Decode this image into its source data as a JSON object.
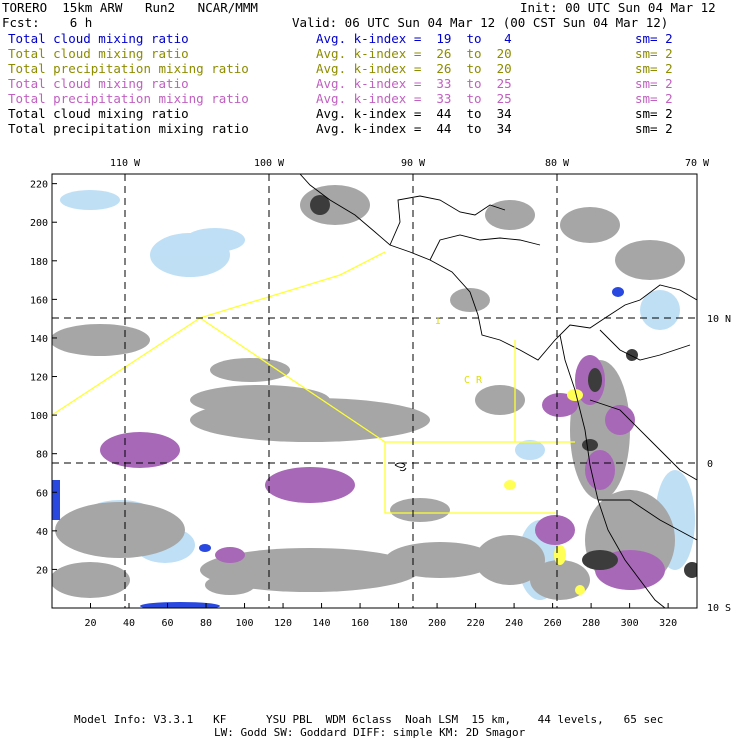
{
  "header": {
    "left1": "TORERO  15km ARW   Run2   NCAR/MMM",
    "right1": "Init: 00 UTC Sun 04 Mar 12",
    "left2": "Fcst:    6 h",
    "right2": "Valid: 06 UTC Sun 04 Mar 12 (00 CST Sun 04 Mar 12)"
  },
  "legend": [
    {
      "field": "Total cloud mixing ratio",
      "idx": "Avg. k-index =  19  to   4",
      "sm": "sm= 2",
      "color": "#0000cc"
    },
    {
      "field": "Total cloud mixing ratio",
      "idx": "Avg. k-index =  26  to  20",
      "sm": "sm= 2",
      "color": "#8c8c00"
    },
    {
      "field": "Total precipitation mixing ratio",
      "idx": "Avg. k-index =  26  to  20",
      "sm": "sm= 2",
      "color": "#8c8c00"
    },
    {
      "field": "Total cloud mixing ratio",
      "idx": "Avg. k-index =  33  to  25",
      "sm": "sm= 2",
      "color": "#c060c0"
    },
    {
      "field": "Total precipitation mixing ratio",
      "idx": "Avg. k-index =  33  to  25",
      "sm": "sm= 2",
      "color": "#c060c0"
    },
    {
      "field": "Total cloud mixing ratio",
      "idx": "Avg. k-index =  44  to  34",
      "sm": "sm= 2",
      "color": "#000000"
    },
    {
      "field": "Total precipitation mixing ratio",
      "idx": "Avg. k-index =  44  to  34",
      "sm": "sm= 2",
      "color": "#000000"
    }
  ],
  "axes": {
    "lon_labels": [
      "110 W",
      "100 W",
      "90 W",
      "80 W",
      "70 W"
    ],
    "lat_labels": [
      "10 N",
      "0",
      "10 S"
    ],
    "x_ticks": [
      "20",
      "40",
      "60",
      "80",
      "100",
      "120",
      "140",
      "160",
      "180",
      "200",
      "220",
      "240",
      "260",
      "280",
      "300",
      "320"
    ],
    "y_ticks": [
      "220",
      "200",
      "180",
      "160",
      "140",
      "120",
      "100",
      "80",
      "60",
      "40",
      "20"
    ]
  },
  "map_labels": {
    "i": "I",
    "cr": "C  R"
  },
  "colors": {
    "yellow": "#ffff33",
    "gray": "#a0a0a0",
    "dark": "#404040",
    "purple": "#a060b0",
    "lightblue": "#a8d4f0",
    "blue": "#2040e0"
  },
  "footer": {
    "line1": "Model Info: V3.3.1   KF      YSU PBL  WDM 6class  Noah LSM  15 km,    44 levels,   65 sec",
    "line2": "LW: Godd SW: Goddard DIFF: simple KM: 2D Smagor"
  }
}
